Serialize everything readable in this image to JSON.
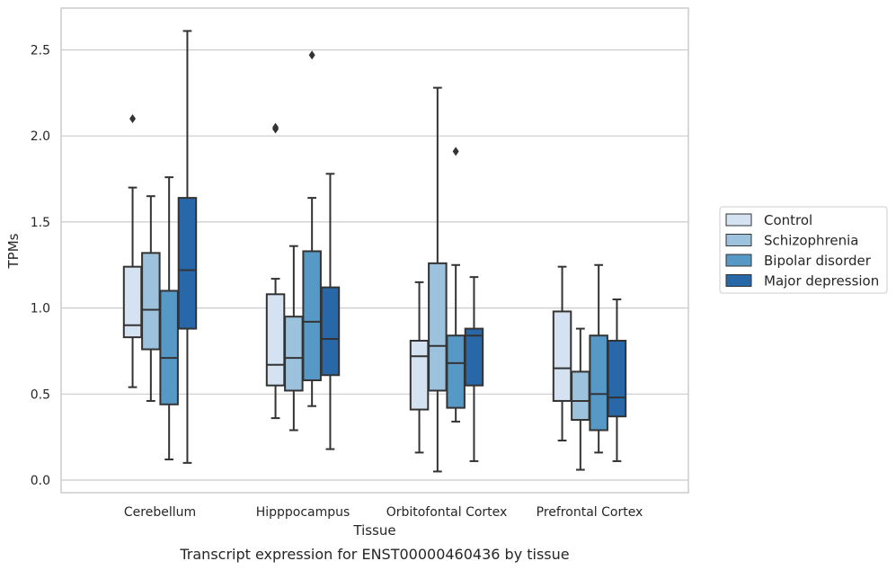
{
  "caption": "Transcript expression for ENST00000460436 by tissue",
  "chart_data": {
    "type": "box",
    "title": "",
    "xlabel": "Tissue",
    "ylabel": "TPMs",
    "ylim": [
      -0.07,
      2.74
    ],
    "yticks": [
      0.0,
      0.5,
      1.0,
      1.5,
      2.0,
      2.5
    ],
    "ytick_labels": [
      "0.0",
      "0.5",
      "1.0",
      "1.5",
      "2.0",
      "2.5"
    ],
    "grid": "horizontal",
    "legend_position": "right",
    "categories": [
      "Cerebellum",
      "Hipppocampus",
      "Orbitofontal Cortex",
      "Prefrontal Cortex"
    ],
    "series": [
      {
        "name": "Control",
        "color": "#d4e2f1",
        "boxes": [
          {
            "whislo": 0.54,
            "q1": 0.83,
            "med": 0.9,
            "q3": 1.24,
            "whishi": 1.7,
            "fliers": [
              2.1
            ]
          },
          {
            "whislo": 0.36,
            "q1": 0.55,
            "med": 0.67,
            "q3": 1.08,
            "whishi": 1.17,
            "fliers": [
              2.04,
              2.05
            ]
          },
          {
            "whislo": 0.16,
            "q1": 0.41,
            "med": 0.72,
            "q3": 0.81,
            "whishi": 1.15,
            "fliers": []
          },
          {
            "whislo": 0.23,
            "q1": 0.46,
            "med": 0.65,
            "q3": 0.98,
            "whishi": 1.24,
            "fliers": []
          }
        ]
      },
      {
        "name": "Schizophrenia",
        "color": "#9cc2dd",
        "boxes": [
          {
            "whislo": 0.46,
            "q1": 0.76,
            "med": 0.99,
            "q3": 1.32,
            "whishi": 1.65,
            "fliers": []
          },
          {
            "whislo": 0.29,
            "q1": 0.52,
            "med": 0.71,
            "q3": 0.95,
            "whishi": 1.36,
            "fliers": []
          },
          {
            "whislo": 0.05,
            "q1": 0.52,
            "med": 0.78,
            "q3": 1.26,
            "whishi": 2.28,
            "fliers": []
          },
          {
            "whislo": 0.06,
            "q1": 0.35,
            "med": 0.46,
            "q3": 0.63,
            "whishi": 0.88,
            "fliers": []
          }
        ]
      },
      {
        "name": "Bipolar disorder",
        "color": "#5799c6",
        "boxes": [
          {
            "whislo": 0.12,
            "q1": 0.44,
            "med": 0.71,
            "q3": 1.1,
            "whishi": 1.76,
            "fliers": []
          },
          {
            "whislo": 0.43,
            "q1": 0.58,
            "med": 0.92,
            "q3": 1.33,
            "whishi": 1.64,
            "fliers": [
              2.47
            ]
          },
          {
            "whislo": 0.34,
            "q1": 0.42,
            "med": 0.68,
            "q3": 0.84,
            "whishi": 1.25,
            "fliers": [
              1.91
            ]
          },
          {
            "whislo": 0.16,
            "q1": 0.29,
            "med": 0.5,
            "q3": 0.84,
            "whishi": 1.25,
            "fliers": []
          }
        ]
      },
      {
        "name": "Major depression",
        "color": "#2867a8",
        "boxes": [
          {
            "whislo": 0.1,
            "q1": 0.88,
            "med": 1.22,
            "q3": 1.64,
            "whishi": 2.61,
            "fliers": []
          },
          {
            "whislo": 0.18,
            "q1": 0.61,
            "med": 0.82,
            "q3": 1.12,
            "whishi": 1.78,
            "fliers": []
          },
          {
            "whislo": 0.11,
            "q1": 0.55,
            "med": 0.84,
            "q3": 0.88,
            "whishi": 1.18,
            "fliers": []
          },
          {
            "whislo": 0.11,
            "q1": 0.37,
            "med": 0.48,
            "q3": 0.81,
            "whishi": 1.05,
            "fliers": []
          }
        ]
      }
    ]
  }
}
